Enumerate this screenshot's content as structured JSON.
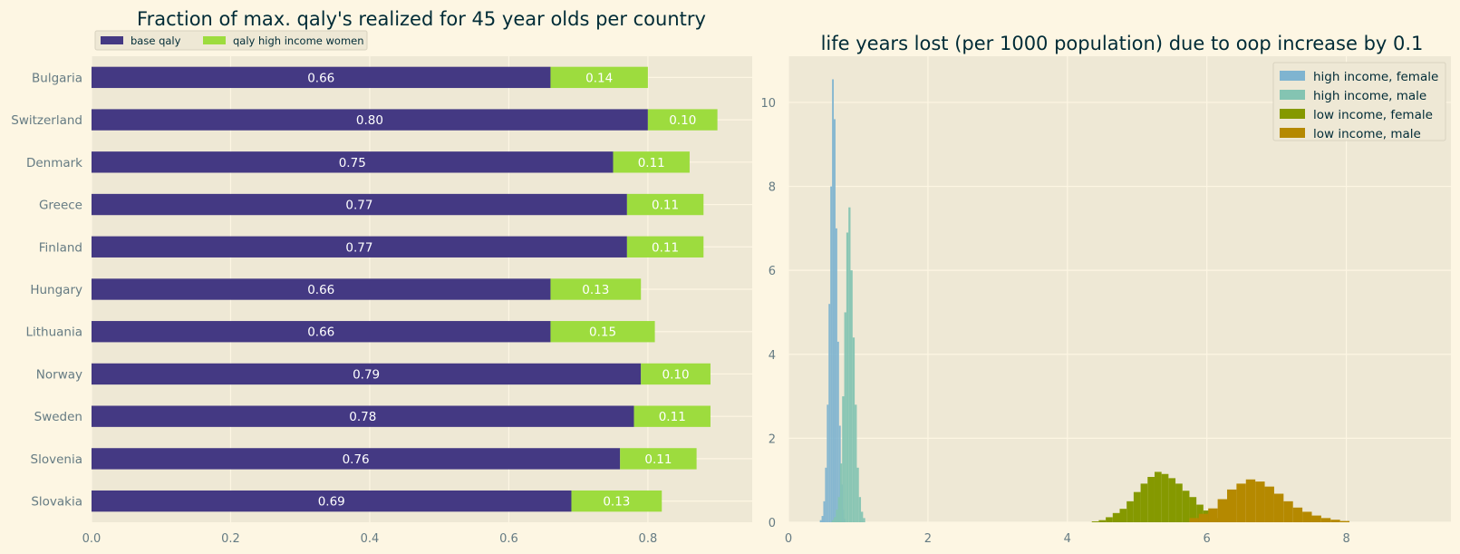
{
  "colors": {
    "figure_bg": "#fdf6e3",
    "axes_bg": "#eee8d5",
    "grid": "#fdf6e3",
    "tick_text": "#657b83",
    "title_text": "#002b36",
    "base_qaly": "#443983",
    "qaly_high_income_women": "#9ddc3e",
    "bar_label_text": "#ffffff",
    "hist_high_income_female": "#7fb4d0",
    "hist_high_income_male": "#84c4b2",
    "hist_low_income_female": "#859900",
    "hist_low_income_male": "#b58900"
  },
  "chart_data": [
    {
      "type": "bar",
      "orientation": "horizontal",
      "stacked": true,
      "title": "Fraction of max. qaly's realized for 45 year olds per country",
      "categories": [
        "Bulgaria",
        "Switzerland",
        "Denmark",
        "Greece",
        "Finland",
        "Hungary",
        "Lithuania",
        "Norway",
        "Sweden",
        "Slovenia",
        "Slovakia"
      ],
      "series": [
        {
          "name": "base qaly",
          "values": [
            0.66,
            0.8,
            0.75,
            0.77,
            0.77,
            0.66,
            0.66,
            0.79,
            0.78,
            0.76,
            0.69
          ],
          "labels": [
            "0.66",
            "0.80",
            "0.75",
            "0.77",
            "0.77",
            "0.66",
            "0.66",
            "0.79",
            "0.78",
            "0.76",
            "0.69"
          ]
        },
        {
          "name": "qaly high income women",
          "values": [
            0.14,
            0.1,
            0.11,
            0.11,
            0.11,
            0.13,
            0.15,
            0.1,
            0.11,
            0.11,
            0.13
          ],
          "labels": [
            "0.14",
            "0.10",
            "0.11",
            "0.11",
            "0.11",
            "0.13",
            "0.15",
            "0.10",
            "0.11",
            "0.11",
            "0.13"
          ]
        }
      ],
      "xlim": [
        0,
        0.95
      ],
      "xticks": [
        "0.0",
        "0.2",
        "0.4",
        "0.6",
        "0.8"
      ],
      "xtick_values": [
        0,
        0.2,
        0.4,
        0.6,
        0.8
      ],
      "grid": true,
      "legend": "top-left, above plot, two columns"
    },
    {
      "type": "histogram",
      "title": "life years lost (per 1000 population) due to oop increase by 0.1",
      "xlim": [
        0,
        9.5
      ],
      "ylim": [
        0,
        11.1
      ],
      "xticks": [
        "0",
        "2",
        "4",
        "6",
        "8"
      ],
      "xtick_values": [
        0,
        2,
        4,
        6,
        8
      ],
      "yticks": [
        "0",
        "2",
        "4",
        "6",
        "8",
        "10"
      ],
      "ytick_values": [
        0,
        2,
        4,
        6,
        8,
        10
      ],
      "grid": true,
      "legend": "top-right",
      "series": [
        {
          "name": "high income, female",
          "bin_start": 0.45,
          "bin_width": 0.025,
          "values": [
            0.05,
            0.15,
            0.5,
            1.3,
            2.8,
            5.2,
            8.0,
            10.55,
            9.6,
            7.0,
            4.3,
            2.3,
            0.9,
            0.3,
            0.08
          ]
        },
        {
          "name": "high income, male",
          "bin_start": 0.62,
          "bin_width": 0.03,
          "values": [
            0.05,
            0.12,
            0.3,
            0.6,
            1.4,
            3.0,
            5.0,
            6.9,
            7.5,
            6.0,
            4.4,
            2.8,
            1.3,
            0.6,
            0.25,
            0.1
          ]
        },
        {
          "name": "low income, female",
          "bin_start": 4.35,
          "bin_width": 0.1,
          "values": [
            0.02,
            0.05,
            0.12,
            0.22,
            0.32,
            0.5,
            0.72,
            0.92,
            1.08,
            1.2,
            1.15,
            1.05,
            0.92,
            0.75,
            0.6,
            0.42,
            0.28,
            0.18,
            0.1
          ]
        },
        {
          "name": "low income, male",
          "bin_start": 5.75,
          "bin_width": 0.135,
          "values": [
            0.1,
            0.2,
            0.33,
            0.55,
            0.78,
            0.92,
            1.02,
            0.97,
            0.85,
            0.68,
            0.5,
            0.35,
            0.25,
            0.16,
            0.1,
            0.06,
            0.03
          ]
        }
      ]
    }
  ]
}
